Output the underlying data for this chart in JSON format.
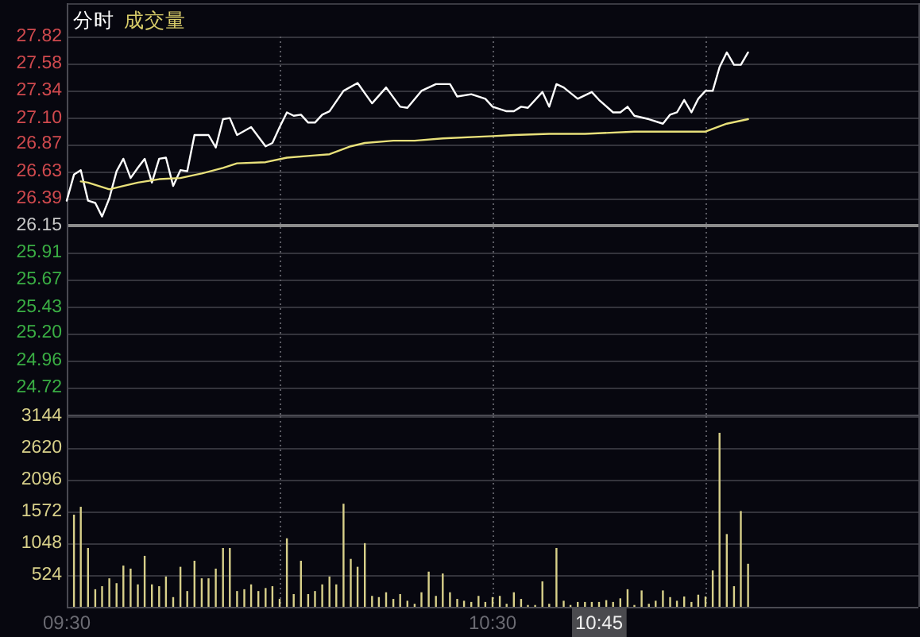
{
  "chart_data": [
    {
      "type": "line",
      "title": "分时",
      "subtitle": "成交量",
      "series": [
        {
          "color": "#ffffff",
          "x": [
            9.5,
            9.517,
            9.533,
            9.55,
            9.567,
            9.583,
            9.6,
            9.617,
            9.633,
            9.65,
            9.667,
            9.683,
            9.7,
            9.717,
            9.733,
            9.75,
            9.767,
            9.783,
            9.8,
            9.833,
            9.85,
            9.867,
            9.883,
            9.9,
            9.933,
            9.967,
            9.983,
            10,
            10.017,
            10.033,
            10.05,
            10.067,
            10.083,
            10.1,
            10.117,
            10.15,
            10.183,
            10.217,
            10.25,
            10.283,
            10.3,
            10.333,
            10.367,
            10.4,
            10.417,
            10.45,
            10.483,
            10.5,
            10.533,
            10.55,
            10.567,
            10.583,
            10.617,
            10.633,
            10.65,
            10.667,
            10.7,
            10.733,
            10.75,
            10.783,
            10.8,
            10.817,
            10.833,
            10.867,
            10.9,
            10.917,
            10.933,
            10.95,
            10.967,
            10.983,
            11,
            11.017,
            11.033,
            11.05,
            11.067,
            11.083,
            11.1
          ],
          "values": [
            26.37,
            26.6,
            26.64,
            26.37,
            26.35,
            26.23,
            26.39,
            26.63,
            26.74,
            26.57,
            26.66,
            26.74,
            26.53,
            26.74,
            26.75,
            26.5,
            26.64,
            26.63,
            26.95,
            26.95,
            26.84,
            27.09,
            27.1,
            26.95,
            27.02,
            26.85,
            26.88,
            27.02,
            27.15,
            27.12,
            27.13,
            27.06,
            27.06,
            27.13,
            27.16,
            27.34,
            27.41,
            27.23,
            27.37,
            27.2,
            27.19,
            27.34,
            27.4,
            27.4,
            27.29,
            27.31,
            27.27,
            27.2,
            27.16,
            27.16,
            27.2,
            27.19,
            27.33,
            27.2,
            27.4,
            27.37,
            27.27,
            27.33,
            27.26,
            27.15,
            27.15,
            27.2,
            27.12,
            27.09,
            27.05,
            27.13,
            27.15,
            27.26,
            27.15,
            27.27,
            27.34,
            27.34,
            27.55,
            27.68,
            27.57,
            27.57,
            27.68
          ]
        },
        {
          "color": "#e8e07a",
          "x": [
            9.533,
            9.55,
            9.6,
            9.633,
            9.667,
            9.717,
            9.767,
            9.817,
            9.867,
            9.9,
            9.967,
            10.017,
            10.083,
            10.117,
            10.167,
            10.2,
            10.267,
            10.317,
            10.383,
            10.5,
            10.55,
            10.633,
            10.717,
            10.833,
            11,
            11.05,
            11.1
          ],
          "values": [
            26.54,
            26.53,
            26.47,
            26.5,
            26.53,
            26.56,
            26.57,
            26.61,
            26.66,
            26.7,
            26.71,
            26.75,
            26.77,
            26.78,
            26.85,
            26.88,
            26.9,
            26.9,
            26.92,
            26.94,
            26.95,
            26.96,
            26.96,
            26.98,
            26.98,
            27.05,
            27.09
          ]
        }
      ],
      "xlim": [
        9.5,
        11.5
      ],
      "xticks": [
        {
          "value": 9.5,
          "label": null
        },
        {
          "value": 10,
          "label": null
        },
        {
          "value": 10.5,
          "label": null
        },
        {
          "value": 11,
          "label": null
        }
      ],
      "ylim": [
        24.48,
        27.82
      ],
      "yticks": [
        27.82,
        27.58,
        27.34,
        {
          "value": 27.1,
          "label": "27.10"
        },
        26.87,
        26.63,
        26.39,
        26.15,
        25.91,
        25.67,
        25.43,
        {
          "value": 25.2,
          "label": "25.20"
        },
        24.96,
        24.72
      ],
      "ref_lines": [
        {
          "axis": "y",
          "value": 26.15,
          "color": "#8c8c8c"
        }
      ],
      "grid": true,
      "tick_labels": "y",
      "line_style": "solid"
    },
    {
      "type": "bar",
      "series": [
        {
          "color": "#d8d08a",
          "x": [
            9.517,
            9.533,
            9.55,
            9.567,
            9.583,
            9.6,
            9.617,
            9.633,
            9.65,
            9.667,
            9.683,
            9.7,
            9.717,
            9.733,
            9.75,
            9.767,
            9.783,
            9.8,
            9.817,
            9.833,
            9.85,
            9.867,
            9.883,
            9.9,
            9.917,
            9.933,
            9.95,
            9.967,
            9.983,
            10,
            10.017,
            10.033,
            10.05,
            10.067,
            10.083,
            10.1,
            10.117,
            10.133,
            10.15,
            10.167,
            10.183,
            10.2,
            10.217,
            10.233,
            10.25,
            10.267,
            10.283,
            10.3,
            10.317,
            10.333,
            10.35,
            10.367,
            10.383,
            10.4,
            10.417,
            10.433,
            10.45,
            10.467,
            10.483,
            10.5,
            10.517,
            10.533,
            10.55,
            10.567,
            10.583,
            10.6,
            10.617,
            10.633,
            10.65,
            10.667,
            10.683,
            10.7,
            10.717,
            10.733,
            10.75,
            10.767,
            10.783,
            10.8,
            10.817,
            10.833,
            10.85,
            10.867,
            10.883,
            10.9,
            10.917,
            10.933,
            10.95,
            10.967,
            10.983,
            11,
            11.017,
            11.033,
            11.05,
            11.067,
            11.083,
            11.1
          ],
          "values": [
            1520,
            1650,
            970,
            290,
            340,
            470,
            390,
            680,
            630,
            370,
            840,
            370,
            340,
            500,
            160,
            660,
            260,
            760,
            470,
            470,
            630,
            970,
            970,
            260,
            290,
            370,
            260,
            310,
            340,
            130,
            1130,
            210,
            760,
            210,
            260,
            370,
            500,
            370,
            1700,
            790,
            660,
            1050,
            180,
            160,
            240,
            130,
            210,
            100,
            50,
            240,
            580,
            180,
            550,
            240,
            130,
            100,
            80,
            180,
            80,
            160,
            180,
            50,
            240,
            130,
            30,
            30,
            420,
            50,
            970,
            100,
            30,
            80,
            80,
            80,
            80,
            110,
            80,
            140,
            290,
            30,
            270,
            50,
            100,
            270,
            160,
            100,
            170,
            80,
            200,
            170,
            600,
            2870,
            1200,
            340,
            1580,
            710
          ]
        }
      ],
      "xlim": [
        9.5,
        11.5
      ],
      "xticks": [
        {
          "value": 9.5,
          "label": "09:30"
        },
        {
          "value": 10,
          "label": null
        },
        {
          "value": 10.5,
          "label": "10:30"
        },
        {
          "value": 11,
          "label": null
        }
      ],
      "ylim": [
        0,
        3144
      ],
      "yticks": [
        524,
        1048,
        1572,
        2096,
        2620,
        3144
      ],
      "grid": true,
      "annotations": [
        {
          "text": "10:45",
          "x": 10.75
        }
      ]
    }
  ]
}
